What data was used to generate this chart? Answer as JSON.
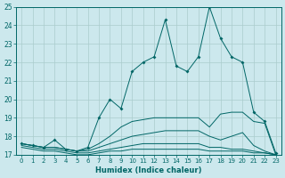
{
  "title": "",
  "xlabel": "Humidex (Indice chaleur)",
  "ylabel": "",
  "bg_color": "#cce8ed",
  "grid_color": "#aacccc",
  "line_color": "#006666",
  "xlim": [
    -0.5,
    23.5
  ],
  "ylim": [
    17,
    25
  ],
  "xticks": [
    0,
    1,
    2,
    3,
    4,
    5,
    6,
    7,
    8,
    9,
    10,
    11,
    12,
    13,
    14,
    15,
    16,
    17,
    18,
    19,
    20,
    21,
    22,
    23
  ],
  "yticks": [
    17,
    18,
    19,
    20,
    21,
    22,
    23,
    24,
    25
  ],
  "series": [
    {
      "x": [
        0,
        1,
        2,
        3,
        4,
        5,
        6,
        7,
        8,
        9,
        10,
        11,
        12,
        13,
        14,
        15,
        16,
        17,
        18,
        19,
        20,
        21,
        22,
        23
      ],
      "y": [
        17.4,
        17.3,
        17.2,
        17.2,
        17.1,
        17.0,
        17.0,
        17.1,
        17.2,
        17.2,
        17.3,
        17.3,
        17.3,
        17.3,
        17.3,
        17.3,
        17.3,
        17.2,
        17.2,
        17.2,
        17.2,
        17.1,
        17.1,
        17.0
      ],
      "marker": false
    },
    {
      "x": [
        0,
        1,
        2,
        3,
        4,
        5,
        6,
        7,
        8,
        9,
        10,
        11,
        12,
        13,
        14,
        15,
        16,
        17,
        18,
        19,
        20,
        21,
        22,
        23
      ],
      "y": [
        17.5,
        17.4,
        17.3,
        17.3,
        17.2,
        17.1,
        17.1,
        17.2,
        17.3,
        17.4,
        17.5,
        17.6,
        17.6,
        17.6,
        17.6,
        17.6,
        17.6,
        17.4,
        17.4,
        17.3,
        17.3,
        17.2,
        17.1,
        17.0
      ],
      "marker": false
    },
    {
      "x": [
        0,
        1,
        2,
        3,
        4,
        5,
        6,
        7,
        8,
        9,
        10,
        11,
        12,
        13,
        14,
        15,
        16,
        17,
        18,
        19,
        20,
        21,
        22,
        23
      ],
      "y": [
        17.6,
        17.5,
        17.4,
        17.4,
        17.3,
        17.2,
        17.2,
        17.4,
        17.6,
        17.8,
        18.0,
        18.1,
        18.2,
        18.3,
        18.3,
        18.3,
        18.3,
        18.0,
        17.8,
        18.0,
        18.2,
        17.5,
        17.2,
        17.0
      ],
      "marker": false
    },
    {
      "x": [
        0,
        1,
        2,
        3,
        4,
        5,
        6,
        7,
        8,
        9,
        10,
        11,
        12,
        13,
        14,
        15,
        16,
        17,
        18,
        19,
        20,
        21,
        22,
        23
      ],
      "y": [
        17.6,
        17.5,
        17.4,
        17.4,
        17.3,
        17.2,
        17.3,
        17.6,
        18.0,
        18.5,
        18.8,
        18.9,
        19.0,
        19.0,
        19.0,
        19.0,
        19.0,
        18.5,
        19.2,
        19.3,
        19.3,
        18.8,
        18.7,
        17.0
      ],
      "marker": false
    },
    {
      "x": [
        0,
        1,
        2,
        3,
        4,
        5,
        6,
        7,
        8,
        9,
        10,
        11,
        12,
        13,
        14,
        15,
        16,
        17,
        18,
        19,
        20,
        21,
        22,
        23
      ],
      "y": [
        17.6,
        17.5,
        17.4,
        17.8,
        17.3,
        17.2,
        17.4,
        19.0,
        20.0,
        19.5,
        21.5,
        22.0,
        22.3,
        24.3,
        21.8,
        21.5,
        22.3,
        25.0,
        23.3,
        22.3,
        22.0,
        19.3,
        18.8,
        17.1
      ],
      "marker": true
    }
  ]
}
